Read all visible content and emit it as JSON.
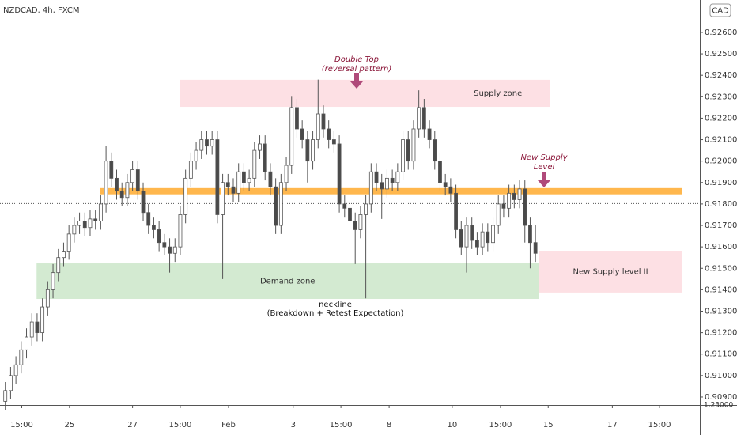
{
  "chart_data": {
    "type": "candlestick",
    "title": "NZDCAD, 4h, FXCM",
    "currency": "CAD",
    "bull_color": "#ffffff",
    "bear_color": "#4a4a4a",
    "outline_color": "#555555",
    "ylim": [
      0.90863,
      0.92751
    ],
    "yticks": [
      {
        "value": 0.909,
        "label": "0.90900"
      },
      {
        "value": 0.91,
        "label": "0.91000"
      },
      {
        "value": 0.911,
        "label": "0.91100"
      },
      {
        "value": 0.912,
        "label": "0.91200"
      },
      {
        "value": 0.913,
        "label": "0.91300"
      },
      {
        "value": 0.914,
        "label": "0.91400"
      },
      {
        "value": 0.915,
        "label": "0.91500"
      },
      {
        "value": 0.916,
        "label": "0.91600"
      },
      {
        "value": 0.917,
        "label": "0.91700"
      },
      {
        "value": 0.918,
        "label": "0.91800"
      },
      {
        "value": 0.919,
        "label": "0.91900"
      },
      {
        "value": 0.92,
        "label": "0.92000"
      },
      {
        "value": 0.921,
        "label": "0.92100"
      },
      {
        "value": 0.922,
        "label": "0.92200"
      },
      {
        "value": 0.923,
        "label": "0.92300"
      },
      {
        "value": 0.924,
        "label": "0.92400"
      },
      {
        "value": 0.925,
        "label": "0.92500"
      },
      {
        "value": 0.926,
        "label": "0.92600"
      }
    ],
    "bottom_axis_label": "1.23000",
    "xlim": [
      -1,
      131
    ],
    "xticks": [
      {
        "value": 3.1,
        "label": "15:00"
      },
      {
        "value": 12.1,
        "label": "25"
      },
      {
        "value": 24,
        "label": "27"
      },
      {
        "value": 33,
        "label": "15:00"
      },
      {
        "value": 42.1,
        "label": "Feb"
      },
      {
        "value": 54.3,
        "label": "3"
      },
      {
        "value": 63.3,
        "label": "15:00"
      },
      {
        "value": 72.4,
        "label": "8"
      },
      {
        "value": 84.3,
        "label": "10"
      },
      {
        "value": 93.4,
        "label": "15:00"
      },
      {
        "value": 102.4,
        "label": "15"
      },
      {
        "value": 114.5,
        "label": "17"
      },
      {
        "value": 123.4,
        "label": "15:00"
      }
    ],
    "candles": [
      [
        0.9088,
        0.9097,
        0.9084,
        0.9093
      ],
      [
        0.9093,
        0.9104,
        0.9089,
        0.91
      ],
      [
        0.91,
        0.9109,
        0.9096,
        0.9105
      ],
      [
        0.9105,
        0.9116,
        0.9101,
        0.9112
      ],
      [
        0.9112,
        0.9122,
        0.9108,
        0.9118
      ],
      [
        0.9118,
        0.9129,
        0.9114,
        0.9125
      ],
      [
        0.9125,
        0.9129,
        0.9116,
        0.912
      ],
      [
        0.912,
        0.9136,
        0.9116,
        0.9132
      ],
      [
        0.9132,
        0.9144,
        0.9128,
        0.914
      ],
      [
        0.914,
        0.9152,
        0.9136,
        0.9148
      ],
      [
        0.9148,
        0.9159,
        0.9144,
        0.9155
      ],
      [
        0.9155,
        0.9162,
        0.9151,
        0.9158
      ],
      [
        0.9158,
        0.917,
        0.9154,
        0.9166
      ],
      [
        0.9166,
        0.9174,
        0.9162,
        0.917
      ],
      [
        0.917,
        0.9176,
        0.9166,
        0.9172
      ],
      [
        0.9172,
        0.9176,
        0.9165,
        0.9169
      ],
      [
        0.9169,
        0.9177,
        0.9165,
        0.9173
      ],
      [
        0.9173,
        0.9177,
        0.9168,
        0.9172
      ],
      [
        0.9172,
        0.9184,
        0.9168,
        0.918
      ],
      [
        0.918,
        0.9207,
        0.9176,
        0.92
      ],
      [
        0.92,
        0.9204,
        0.9188,
        0.9192
      ],
      [
        0.9192,
        0.9196,
        0.9182,
        0.9186
      ],
      [
        0.9186,
        0.919,
        0.9179,
        0.9183
      ],
      [
        0.9183,
        0.9194,
        0.9179,
        0.919
      ],
      [
        0.919,
        0.92,
        0.9186,
        0.9196
      ],
      [
        0.9196,
        0.92,
        0.9182,
        0.9186
      ],
      [
        0.9186,
        0.919,
        0.9172,
        0.9176
      ],
      [
        0.9176,
        0.918,
        0.9166,
        0.917
      ],
      [
        0.917,
        0.9174,
        0.9164,
        0.9168
      ],
      [
        0.9168,
        0.9172,
        0.9158,
        0.9162
      ],
      [
        0.9162,
        0.9166,
        0.9156,
        0.916
      ],
      [
        0.916,
        0.9164,
        0.9148,
        0.9157
      ],
      [
        0.9157,
        0.9164,
        0.9153,
        0.916
      ],
      [
        0.916,
        0.9179,
        0.9156,
        0.9175
      ],
      [
        0.9175,
        0.9196,
        0.9171,
        0.9192
      ],
      [
        0.9192,
        0.9204,
        0.9188,
        0.92
      ],
      [
        0.92,
        0.9209,
        0.9196,
        0.9205
      ],
      [
        0.9205,
        0.9214,
        0.9201,
        0.921
      ],
      [
        0.921,
        0.9214,
        0.9203,
        0.9207
      ],
      [
        0.9207,
        0.9214,
        0.9203,
        0.921
      ],
      [
        0.921,
        0.9214,
        0.9171,
        0.9175
      ],
      [
        0.9175,
        0.9194,
        0.9145,
        0.919
      ],
      [
        0.919,
        0.9194,
        0.9184,
        0.9188
      ],
      [
        0.9188,
        0.9192,
        0.9181,
        0.9185
      ],
      [
        0.9185,
        0.9199,
        0.9181,
        0.9195
      ],
      [
        0.9195,
        0.9199,
        0.9186,
        0.919
      ],
      [
        0.919,
        0.9196,
        0.9186,
        0.9192
      ],
      [
        0.9192,
        0.9209,
        0.9188,
        0.9205
      ],
      [
        0.9205,
        0.9212,
        0.9201,
        0.9208
      ],
      [
        0.9208,
        0.9212,
        0.9191,
        0.9195
      ],
      [
        0.9195,
        0.9199,
        0.9184,
        0.9188
      ],
      [
        0.9188,
        0.9192,
        0.9166,
        0.917
      ],
      [
        0.917,
        0.9194,
        0.9166,
        0.919
      ],
      [
        0.919,
        0.9202,
        0.9186,
        0.9198
      ],
      [
        0.9198,
        0.923,
        0.9194,
        0.9225
      ],
      [
        0.9225,
        0.9229,
        0.9211,
        0.9215
      ],
      [
        0.9215,
        0.9219,
        0.9206,
        0.921
      ],
      [
        0.921,
        0.9214,
        0.919,
        0.92
      ],
      [
        0.92,
        0.9214,
        0.9196,
        0.921
      ],
      [
        0.921,
        0.9238,
        0.9206,
        0.9222
      ],
      [
        0.9222,
        0.9226,
        0.9211,
        0.9215
      ],
      [
        0.9215,
        0.9219,
        0.9206,
        0.921
      ],
      [
        0.921,
        0.9214,
        0.9204,
        0.9208
      ],
      [
        0.9208,
        0.9212,
        0.9176,
        0.918
      ],
      [
        0.918,
        0.9184,
        0.9174,
        0.9178
      ],
      [
        0.9178,
        0.9182,
        0.9168,
        0.9172
      ],
      [
        0.9172,
        0.9176,
        0.9152,
        0.9168
      ],
      [
        0.9168,
        0.9179,
        0.9164,
        0.9175
      ],
      [
        0.9175,
        0.9184,
        0.9136,
        0.918
      ],
      [
        0.918,
        0.9199,
        0.9176,
        0.9195
      ],
      [
        0.9195,
        0.9199,
        0.9186,
        0.919
      ],
      [
        0.919,
        0.9194,
        0.9173,
        0.9187
      ],
      [
        0.9187,
        0.9196,
        0.9183,
        0.9192
      ],
      [
        0.9192,
        0.9196,
        0.9186,
        0.919
      ],
      [
        0.919,
        0.9199,
        0.9186,
        0.9195
      ],
      [
        0.9195,
        0.9214,
        0.9191,
        0.921
      ],
      [
        0.921,
        0.9214,
        0.9196,
        0.92
      ],
      [
        0.92,
        0.9219,
        0.9196,
        0.9215
      ],
      [
        0.9215,
        0.9233,
        0.9211,
        0.9225
      ],
      [
        0.9225,
        0.9229,
        0.9211,
        0.9215
      ],
      [
        0.9215,
        0.9219,
        0.9206,
        0.921
      ],
      [
        0.921,
        0.9214,
        0.9196,
        0.92
      ],
      [
        0.92,
        0.9204,
        0.9186,
        0.919
      ],
      [
        0.919,
        0.9194,
        0.9184,
        0.9188
      ],
      [
        0.9188,
        0.9192,
        0.9181,
        0.9185
      ],
      [
        0.9185,
        0.9189,
        0.9164,
        0.9168
      ],
      [
        0.9168,
        0.9172,
        0.9156,
        0.916
      ],
      [
        0.916,
        0.9174,
        0.9148,
        0.917
      ],
      [
        0.917,
        0.9174,
        0.9159,
        0.9163
      ],
      [
        0.9163,
        0.9167,
        0.9156,
        0.916
      ],
      [
        0.916,
        0.9171,
        0.9156,
        0.9167
      ],
      [
        0.9167,
        0.9171,
        0.9158,
        0.9162
      ],
      [
        0.9162,
        0.9174,
        0.9158,
        0.917
      ],
      [
        0.917,
        0.9184,
        0.9166,
        0.918
      ],
      [
        0.918,
        0.9184,
        0.9174,
        0.9178
      ],
      [
        0.9178,
        0.9189,
        0.9174,
        0.9185
      ],
      [
        0.9185,
        0.9189,
        0.9178,
        0.9182
      ],
      [
        0.9182,
        0.9191,
        0.9178,
        0.9187
      ],
      [
        0.9187,
        0.9191,
        0.9162,
        0.917
      ],
      [
        0.917,
        0.9174,
        0.915,
        0.9162
      ],
      [
        0.9162,
        0.917,
        0.9153,
        0.9157
      ]
    ],
    "last_price_line": 0.91802,
    "level": {
      "x": [
        17.8,
        127.7
      ],
      "y": [
        0.91845,
        0.91874
      ],
      "color": "#ffb74d"
    },
    "zones": [
      {
        "label": "Supply zone",
        "x": [
          33,
          102.7
        ],
        "y": [
          0.92253,
          0.92379
        ],
        "color": "#fde0e4",
        "text_color": "#8a1538"
      },
      {
        "label": "Demand zone",
        "x": [
          5.9,
          100.6
        ],
        "y": [
          0.91357,
          0.91523
        ],
        "color": "#d3ead1",
        "text_color": "#1b5e20"
      },
      {
        "label": "New Supply level II",
        "x": [
          100.6,
          127.7
        ],
        "y": [
          0.91387,
          0.91582
        ],
        "color": "#fde0e4",
        "text_color": "#8a1538"
      }
    ],
    "notes": {
      "double_top": [
        "Double Top",
        "(reversal pattern)"
      ],
      "new_supply": [
        "New Supply",
        "Level"
      ],
      "neckline": [
        "neckline",
        "(Breakdown + Retest Expectation)"
      ]
    }
  }
}
